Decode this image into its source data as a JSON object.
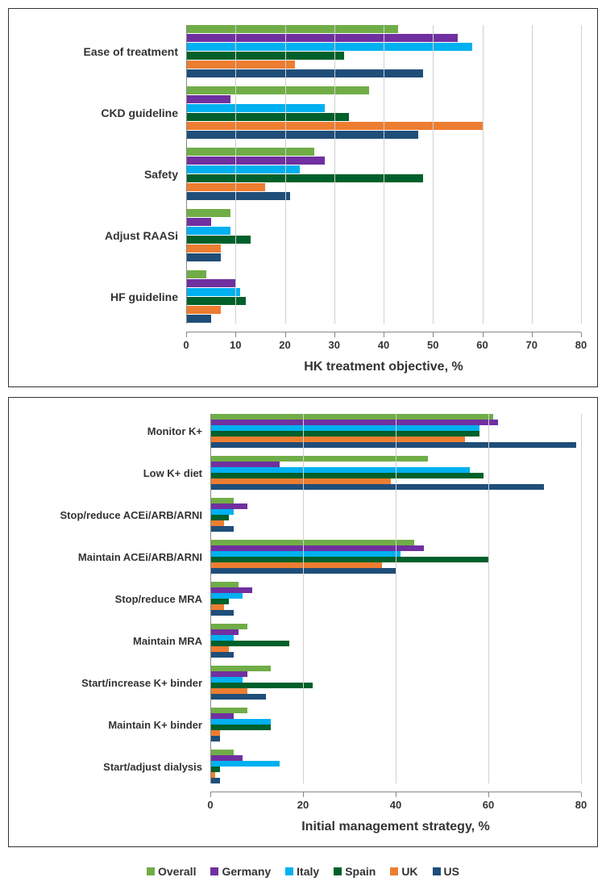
{
  "series_colors": {
    "overall": "#70ad47",
    "germany": "#7030a0",
    "italy": "#00b0f0",
    "spain": "#00602b",
    "uk": "#ed7d31",
    "us": "#1f4e79"
  },
  "series_order": [
    "overall",
    "germany",
    "italy",
    "spain",
    "uk",
    "us"
  ],
  "legend_labels": {
    "overall": "Overall",
    "germany": "Germany",
    "italy": "Italy",
    "spain": "Spain",
    "uk": "UK",
    "us": "US"
  },
  "chart1": {
    "type": "bar",
    "orientation": "horizontal",
    "xlabel": "HK treatment objective, %",
    "xlim": [
      0,
      80
    ],
    "xtick_step": 10,
    "grid_color": "#d0d0d0",
    "background": "#ffffff",
    "categories": [
      {
        "label": "Ease of treatment",
        "values": {
          "overall": 43,
          "germany": 55,
          "italy": 58,
          "spain": 32,
          "uk": 22,
          "us": 48
        }
      },
      {
        "label": "CKD guideline",
        "values": {
          "overall": 37,
          "germany": 9,
          "italy": 28,
          "spain": 33,
          "uk": 60,
          "us": 47
        }
      },
      {
        "label": "Safety",
        "values": {
          "overall": 26,
          "germany": 28,
          "italy": 23,
          "spain": 48,
          "uk": 16,
          "us": 21
        }
      },
      {
        "label": "Adjust RAASi",
        "values": {
          "overall": 9,
          "germany": 5,
          "italy": 9,
          "spain": 13,
          "uk": 7,
          "us": 7
        }
      },
      {
        "label": "HF guideline",
        "values": {
          "overall": 4,
          "germany": 10,
          "italy": 11,
          "spain": 12,
          "uk": 7,
          "us": 5
        }
      }
    ]
  },
  "chart2": {
    "type": "bar",
    "orientation": "horizontal",
    "xlabel": "Initial management strategy, %",
    "xlim": [
      0,
      80
    ],
    "xtick_step": 20,
    "grid_color": "#d0d0d0",
    "background": "#ffffff",
    "categories": [
      {
        "label": "Monitor K+",
        "values": {
          "overall": 61,
          "germany": 62,
          "italy": 58,
          "spain": 58,
          "uk": 55,
          "us": 79
        }
      },
      {
        "label": "Low K+ diet",
        "values": {
          "overall": 47,
          "germany": 15,
          "italy": 56,
          "spain": 59,
          "uk": 39,
          "us": 72
        }
      },
      {
        "label": "Stop/reduce ACEi/ARB/ARNI",
        "values": {
          "overall": 5,
          "germany": 8,
          "italy": 5,
          "spain": 4,
          "uk": 3,
          "us": 5
        }
      },
      {
        "label": "Maintain ACEi/ARB/ARNI",
        "values": {
          "overall": 44,
          "germany": 46,
          "italy": 41,
          "spain": 60,
          "uk": 37,
          "us": 40
        }
      },
      {
        "label": "Stop/reduce MRA",
        "values": {
          "overall": 6,
          "germany": 9,
          "italy": 7,
          "spain": 4,
          "uk": 3,
          "us": 5
        }
      },
      {
        "label": "Maintain MRA",
        "values": {
          "overall": 8,
          "germany": 6,
          "italy": 5,
          "spain": 17,
          "uk": 4,
          "us": 5
        }
      },
      {
        "label": "Start/increase K+ binder",
        "values": {
          "overall": 13,
          "germany": 8,
          "italy": 7,
          "spain": 22,
          "uk": 8,
          "us": 12
        }
      },
      {
        "label": "Maintain  K+ binder",
        "values": {
          "overall": 8,
          "germany": 5,
          "italy": 13,
          "spain": 13,
          "uk": 2,
          "us": 2
        }
      },
      {
        "label": "Start/adjust dialysis",
        "values": {
          "overall": 5,
          "germany": 7,
          "italy": 15,
          "spain": 2,
          "uk": 1,
          "us": 2
        }
      }
    ]
  }
}
